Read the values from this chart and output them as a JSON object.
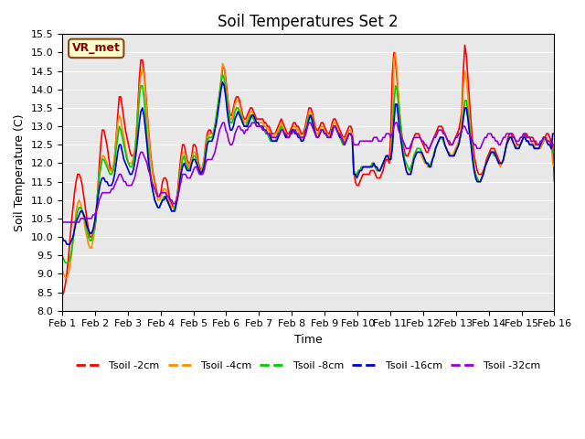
{
  "title": "Soil Temperatures Set 2",
  "xlabel": "Time",
  "ylabel": "Soil Temperature (C)",
  "ylim": [
    8.0,
    15.5
  ],
  "yticks": [
    8.0,
    8.5,
    9.0,
    9.5,
    10.0,
    10.5,
    11.0,
    11.5,
    12.0,
    12.5,
    13.0,
    13.5,
    14.0,
    14.5,
    15.0,
    15.5
  ],
  "bg_color": "#e8e8e8",
  "label_box": "VR_met",
  "x_labels": [
    "Feb 1",
    "Feb 2",
    "Feb 3",
    "Feb 4",
    "Feb 5",
    "Feb 6",
    "Feb 7",
    "Feb 8",
    "Feb 9",
    "Feb 10",
    "Feb 11",
    "Feb 12",
    "Feb 13",
    "Feb 14",
    "Feb 15",
    "Feb 16"
  ],
  "series_colors": [
    "#ff0000",
    "#ff8c00",
    "#00cc00",
    "#0000cc",
    "#9400d3"
  ],
  "series_labels": [
    "Tsoil -2cm",
    "Tsoil -4cm",
    "Tsoil -8cm",
    "Tsoil -16cm",
    "Tsoil -32cm"
  ],
  "tsoil_2cm": [
    8.4,
    8.5,
    8.7,
    9.0,
    9.4,
    9.9,
    10.4,
    10.8,
    11.2,
    11.5,
    11.7,
    11.7,
    11.6,
    11.4,
    11.1,
    10.8,
    10.5,
    10.2,
    10.0,
    10.0,
    10.1,
    10.2,
    10.5,
    11.2,
    11.9,
    12.5,
    12.9,
    12.9,
    12.7,
    12.5,
    12.2,
    11.9,
    11.8,
    11.8,
    12.1,
    12.7,
    13.3,
    13.8,
    13.8,
    13.5,
    13.2,
    12.9,
    12.7,
    12.5,
    12.3,
    12.2,
    12.2,
    12.3,
    12.7,
    13.5,
    14.3,
    14.8,
    14.8,
    14.5,
    14.0,
    13.4,
    12.9,
    12.4,
    12.0,
    11.7,
    11.5,
    11.3,
    11.1,
    11.1,
    11.2,
    11.5,
    11.6,
    11.6,
    11.5,
    11.2,
    11.0,
    10.9,
    10.8,
    10.8,
    11.0,
    11.3,
    11.8,
    12.2,
    12.5,
    12.5,
    12.3,
    12.1,
    12.0,
    12.0,
    12.2,
    12.5,
    12.5,
    12.4,
    12.1,
    11.9,
    11.8,
    11.9,
    12.1,
    12.5,
    12.8,
    12.9,
    12.9,
    12.8,
    12.8,
    13.0,
    13.2,
    13.5,
    13.8,
    14.2,
    14.6,
    14.6,
    14.3,
    13.9,
    13.5,
    13.3,
    13.3,
    13.5,
    13.7,
    13.8,
    13.8,
    13.7,
    13.5,
    13.3,
    13.2,
    13.2,
    13.3,
    13.4,
    13.5,
    13.5,
    13.4,
    13.3,
    13.2,
    13.2,
    13.2,
    13.2,
    13.2,
    13.1,
    13.1,
    13.0,
    13.0,
    12.9,
    12.8,
    12.8,
    12.8,
    12.9,
    13.0,
    13.1,
    13.2,
    13.1,
    13.0,
    12.9,
    12.8,
    12.8,
    12.9,
    13.0,
    13.1,
    13.1,
    13.0,
    13.0,
    12.9,
    12.8,
    12.8,
    12.9,
    13.1,
    13.3,
    13.5,
    13.5,
    13.4,
    13.2,
    13.0,
    12.9,
    12.9,
    13.0,
    13.1,
    13.1,
    13.0,
    12.9,
    12.8,
    12.8,
    12.9,
    13.1,
    13.2,
    13.2,
    13.1,
    13.0,
    12.9,
    12.8,
    12.7,
    12.7,
    12.8,
    12.9,
    13.0,
    13.0,
    12.9,
    11.8,
    11.5,
    11.4,
    11.4,
    11.5,
    11.6,
    11.7,
    11.7,
    11.7,
    11.7,
    11.7,
    11.8,
    11.8,
    11.8,
    11.7,
    11.6,
    11.6,
    11.6,
    11.7,
    11.8,
    12.0,
    12.1,
    12.1,
    12.0,
    12.8,
    14.4,
    15.0,
    14.8,
    14.3,
    13.7,
    13.2,
    12.8,
    12.5,
    12.3,
    12.2,
    12.2,
    12.3,
    12.4,
    12.6,
    12.7,
    12.8,
    12.8,
    12.8,
    12.7,
    12.6,
    12.5,
    12.4,
    12.3,
    12.3,
    12.4,
    12.5,
    12.6,
    12.7,
    12.8,
    12.9,
    13.0,
    13.0,
    13.0,
    12.9,
    12.8,
    12.7,
    12.6,
    12.5,
    12.5,
    12.5,
    12.6,
    12.7,
    12.8,
    12.9,
    13.1,
    13.4,
    14.5,
    15.2,
    14.9,
    14.3,
    13.7,
    13.1,
    12.6,
    12.2,
    12.0,
    11.8,
    11.7,
    11.7,
    11.7,
    11.8,
    11.9,
    12.1,
    12.2,
    12.3,
    12.4,
    12.4,
    12.4,
    12.3,
    12.2,
    12.1,
    12.0,
    12.0,
    12.1,
    12.3,
    12.5,
    12.7,
    12.8,
    12.8,
    12.8,
    12.7,
    12.6,
    12.5,
    12.5,
    12.5,
    12.6,
    12.7,
    12.8,
    12.8,
    12.7,
    12.7,
    12.7,
    12.7,
    12.6,
    12.6,
    12.5,
    12.5,
    12.5,
    12.5,
    12.6,
    12.7,
    12.8,
    12.8,
    12.7,
    12.6,
    12.5,
    11.5
  ],
  "tsoil_4cm": [
    9.1,
    9.0,
    8.9,
    8.9,
    9.0,
    9.2,
    9.5,
    9.9,
    10.3,
    10.7,
    10.9,
    11.0,
    10.9,
    10.7,
    10.5,
    10.2,
    10.0,
    9.8,
    9.7,
    9.7,
    9.9,
    10.2,
    10.7,
    11.2,
    11.7,
    12.0,
    12.2,
    12.2,
    12.1,
    12.0,
    11.9,
    11.8,
    11.8,
    11.9,
    12.2,
    12.7,
    13.1,
    13.3,
    13.2,
    12.9,
    12.7,
    12.4,
    12.2,
    12.0,
    12.0,
    12.0,
    12.1,
    12.3,
    12.8,
    13.4,
    14.0,
    14.4,
    14.6,
    14.4,
    13.9,
    13.3,
    12.8,
    12.3,
    11.9,
    11.6,
    11.4,
    11.2,
    11.0,
    11.0,
    11.1,
    11.2,
    11.3,
    11.3,
    11.2,
    11.0,
    10.9,
    10.8,
    10.8,
    10.8,
    11.0,
    11.2,
    11.6,
    12.0,
    12.3,
    12.3,
    12.2,
    12.0,
    11.9,
    12.0,
    12.1,
    12.3,
    12.3,
    12.2,
    12.0,
    11.8,
    11.8,
    11.9,
    12.1,
    12.4,
    12.7,
    12.8,
    12.8,
    12.8,
    12.8,
    13.0,
    13.3,
    13.6,
    13.9,
    14.3,
    14.7,
    14.6,
    14.2,
    13.8,
    13.4,
    13.2,
    13.2,
    13.4,
    13.6,
    13.7,
    13.7,
    13.6,
    13.4,
    13.2,
    13.1,
    13.1,
    13.2,
    13.3,
    13.4,
    13.4,
    13.3,
    13.2,
    13.1,
    13.1,
    13.1,
    13.1,
    13.1,
    13.0,
    13.0,
    12.9,
    12.9,
    12.8,
    12.7,
    12.7,
    12.8,
    12.8,
    12.9,
    13.0,
    13.1,
    13.0,
    12.9,
    12.8,
    12.7,
    12.7,
    12.8,
    12.9,
    13.0,
    13.0,
    12.9,
    12.9,
    12.8,
    12.7,
    12.7,
    12.8,
    13.0,
    13.2,
    13.4,
    13.4,
    13.3,
    13.1,
    12.9,
    12.8,
    12.8,
    12.9,
    13.0,
    13.0,
    12.9,
    12.8,
    12.8,
    12.7,
    12.8,
    13.0,
    13.1,
    13.1,
    13.0,
    12.9,
    12.8,
    12.7,
    12.7,
    12.6,
    12.7,
    12.8,
    12.9,
    12.9,
    12.8,
    11.8,
    11.7,
    11.7,
    11.8,
    11.8,
    11.9,
    11.9,
    11.9,
    11.9,
    11.9,
    11.9,
    11.9,
    12.0,
    12.0,
    11.9,
    11.8,
    11.8,
    11.8,
    11.9,
    12.0,
    12.1,
    12.2,
    12.2,
    12.1,
    12.2,
    13.2,
    14.8,
    15.0,
    14.5,
    13.8,
    13.2,
    12.7,
    12.3,
    12.0,
    11.8,
    11.7,
    11.7,
    11.8,
    12.0,
    12.2,
    12.3,
    12.3,
    12.3,
    12.3,
    12.2,
    12.1,
    12.0,
    12.0,
    11.9,
    11.9,
    12.0,
    12.1,
    12.3,
    12.4,
    12.5,
    12.6,
    12.7,
    12.7,
    12.6,
    12.5,
    12.4,
    12.3,
    12.3,
    12.2,
    12.2,
    12.3,
    12.4,
    12.5,
    12.6,
    12.8,
    13.2,
    14.0,
    14.5,
    14.3,
    13.8,
    13.2,
    12.7,
    12.2,
    11.9,
    11.7,
    11.5,
    11.5,
    11.5,
    11.6,
    11.7,
    11.9,
    12.0,
    12.1,
    12.2,
    12.3,
    12.3,
    12.3,
    12.2,
    12.1,
    12.0,
    11.9,
    12.0,
    12.1,
    12.3,
    12.5,
    12.6,
    12.7,
    12.7,
    12.6,
    12.5,
    12.5,
    12.4,
    12.4,
    12.5,
    12.6,
    12.7,
    12.7,
    12.6,
    12.6,
    12.6,
    12.6,
    12.5,
    12.5,
    12.4,
    12.4,
    12.4,
    12.4,
    12.5,
    12.6,
    12.7,
    12.7,
    12.6,
    12.6,
    12.5,
    12.0,
    11.9
  ],
  "tsoil_8cm": [
    9.5,
    9.4,
    9.3,
    9.3,
    9.3,
    9.4,
    9.6,
    9.9,
    10.2,
    10.5,
    10.7,
    10.8,
    10.8,
    10.7,
    10.6,
    10.4,
    10.2,
    10.0,
    9.9,
    9.9,
    10.1,
    10.3,
    10.7,
    11.2,
    11.6,
    11.9,
    12.1,
    12.1,
    12.0,
    11.9,
    11.8,
    11.7,
    11.7,
    11.8,
    12.0,
    12.4,
    12.7,
    13.0,
    12.9,
    12.7,
    12.5,
    12.3,
    12.1,
    12.0,
    11.9,
    11.9,
    12.0,
    12.2,
    12.6,
    13.2,
    13.8,
    14.1,
    14.1,
    13.8,
    13.3,
    12.7,
    12.3,
    11.8,
    11.5,
    11.2,
    11.0,
    10.9,
    10.8,
    10.8,
    10.9,
    11.0,
    11.1,
    11.1,
    11.0,
    10.9,
    10.8,
    10.7,
    10.7,
    10.8,
    10.9,
    11.1,
    11.5,
    11.8,
    12.1,
    12.2,
    12.0,
    11.9,
    11.8,
    11.9,
    12.0,
    12.2,
    12.2,
    12.1,
    11.9,
    11.8,
    11.7,
    11.8,
    12.0,
    12.3,
    12.6,
    12.7,
    12.7,
    12.7,
    12.8,
    13.0,
    13.3,
    13.6,
    13.9,
    14.2,
    14.4,
    14.3,
    14.0,
    13.6,
    13.3,
    13.1,
    13.1,
    13.2,
    13.4,
    13.5,
    13.5,
    13.4,
    13.3,
    13.1,
    13.0,
    13.0,
    13.1,
    13.2,
    13.3,
    13.3,
    13.2,
    13.1,
    13.0,
    13.0,
    13.0,
    13.0,
    12.9,
    12.9,
    12.8,
    12.8,
    12.7,
    12.6,
    12.6,
    12.6,
    12.6,
    12.7,
    12.8,
    12.9,
    13.0,
    12.9,
    12.8,
    12.7,
    12.7,
    12.7,
    12.8,
    12.9,
    12.9,
    12.9,
    12.8,
    12.8,
    12.7,
    12.6,
    12.6,
    12.7,
    12.9,
    13.1,
    13.3,
    13.3,
    13.1,
    12.9,
    12.8,
    12.7,
    12.7,
    12.8,
    12.9,
    12.9,
    12.8,
    12.8,
    12.7,
    12.7,
    12.7,
    12.9,
    13.0,
    13.0,
    12.9,
    12.8,
    12.7,
    12.6,
    12.5,
    12.5,
    12.6,
    12.7,
    12.8,
    12.8,
    12.7,
    11.8,
    11.7,
    11.7,
    11.8,
    11.8,
    11.9,
    11.9,
    11.9,
    11.9,
    11.9,
    11.9,
    11.9,
    12.0,
    12.0,
    11.9,
    11.8,
    11.8,
    11.8,
    11.9,
    12.0,
    12.1,
    12.2,
    12.2,
    12.1,
    12.1,
    12.6,
    13.6,
    14.1,
    14.0,
    13.6,
    13.2,
    12.8,
    12.4,
    12.1,
    12.0,
    11.9,
    11.8,
    11.9,
    12.0,
    12.2,
    12.3,
    12.4,
    12.4,
    12.4,
    12.3,
    12.2,
    12.1,
    12.0,
    12.0,
    11.9,
    12.0,
    12.1,
    12.2,
    12.4,
    12.5,
    12.6,
    12.7,
    12.7,
    12.6,
    12.5,
    12.4,
    12.3,
    12.2,
    12.2,
    12.2,
    12.2,
    12.3,
    12.4,
    12.5,
    12.7,
    12.9,
    13.3,
    13.7,
    13.7,
    13.4,
    13.0,
    12.6,
    12.2,
    11.9,
    11.7,
    11.6,
    11.5,
    11.5,
    11.6,
    11.7,
    11.9,
    12.0,
    12.1,
    12.2,
    12.3,
    12.3,
    12.2,
    12.2,
    12.1,
    12.0,
    12.0,
    12.0,
    12.1,
    12.3,
    12.5,
    12.6,
    12.7,
    12.7,
    12.6,
    12.5,
    12.4,
    12.4,
    12.4,
    12.5,
    12.6,
    12.7,
    12.7,
    12.6,
    12.6,
    12.5,
    12.5,
    12.5,
    12.4,
    12.4,
    12.4,
    12.4,
    12.5,
    12.6,
    12.7,
    12.7,
    12.6,
    12.5,
    12.5,
    12.4,
    12.3,
    12.3
  ],
  "tsoil_16cm": [
    10.0,
    9.9,
    9.9,
    9.8,
    9.8,
    9.8,
    9.9,
    10.0,
    10.2,
    10.4,
    10.5,
    10.6,
    10.7,
    10.7,
    10.6,
    10.5,
    10.3,
    10.2,
    10.1,
    10.1,
    10.2,
    10.4,
    10.7,
    11.0,
    11.3,
    11.5,
    11.6,
    11.6,
    11.5,
    11.5,
    11.4,
    11.4,
    11.4,
    11.5,
    11.7,
    12.0,
    12.3,
    12.5,
    12.5,
    12.3,
    12.1,
    12.0,
    11.9,
    11.8,
    11.7,
    11.7,
    11.8,
    12.0,
    12.3,
    12.7,
    13.1,
    13.4,
    13.5,
    13.3,
    12.9,
    12.5,
    12.0,
    11.7,
    11.4,
    11.2,
    11.0,
    10.9,
    10.8,
    10.8,
    10.9,
    11.0,
    11.0,
    11.1,
    11.0,
    10.9,
    10.8,
    10.7,
    10.7,
    10.7,
    10.9,
    11.1,
    11.4,
    11.7,
    11.9,
    12.0,
    11.9,
    11.8,
    11.8,
    11.8,
    12.0,
    12.1,
    12.1,
    12.0,
    11.9,
    11.8,
    11.7,
    11.8,
    11.9,
    12.2,
    12.5,
    12.6,
    12.6,
    12.6,
    12.7,
    12.9,
    13.1,
    13.4,
    13.7,
    14.0,
    14.2,
    14.1,
    13.8,
    13.4,
    13.1,
    12.9,
    12.9,
    13.0,
    13.2,
    13.3,
    13.4,
    13.3,
    13.2,
    13.1,
    13.0,
    13.0,
    13.0,
    13.1,
    13.2,
    13.3,
    13.3,
    13.2,
    13.1,
    13.1,
    13.0,
    13.0,
    13.0,
    12.9,
    12.9,
    12.8,
    12.8,
    12.7,
    12.6,
    12.6,
    12.6,
    12.6,
    12.7,
    12.8,
    12.9,
    12.9,
    12.8,
    12.7,
    12.7,
    12.7,
    12.8,
    12.9,
    12.9,
    12.8,
    12.8,
    12.7,
    12.7,
    12.6,
    12.6,
    12.7,
    12.9,
    13.0,
    13.2,
    13.3,
    13.2,
    13.0,
    12.8,
    12.7,
    12.7,
    12.8,
    12.9,
    12.9,
    12.8,
    12.8,
    12.7,
    12.7,
    12.7,
    12.9,
    13.0,
    13.0,
    12.9,
    12.8,
    12.7,
    12.7,
    12.6,
    12.5,
    12.6,
    12.7,
    12.8,
    12.8,
    12.7,
    11.7,
    11.7,
    11.6,
    11.7,
    11.8,
    11.8,
    11.9,
    11.9,
    11.9,
    11.9,
    11.9,
    11.9,
    11.9,
    12.0,
    11.9,
    11.9,
    11.8,
    11.8,
    11.9,
    12.0,
    12.1,
    12.2,
    12.2,
    12.1,
    12.1,
    12.4,
    13.1,
    13.6,
    13.6,
    13.2,
    12.8,
    12.5,
    12.2,
    12.0,
    11.8,
    11.7,
    11.7,
    11.7,
    11.9,
    12.1,
    12.2,
    12.3,
    12.3,
    12.3,
    12.3,
    12.2,
    12.1,
    12.0,
    12.0,
    11.9,
    11.9,
    12.1,
    12.2,
    12.4,
    12.5,
    12.6,
    12.7,
    12.7,
    12.7,
    12.5,
    12.4,
    12.3,
    12.2,
    12.2,
    12.2,
    12.2,
    12.3,
    12.4,
    12.5,
    12.7,
    12.9,
    13.2,
    13.5,
    13.5,
    13.2,
    12.8,
    12.5,
    12.1,
    11.8,
    11.6,
    11.5,
    11.5,
    11.5,
    11.6,
    11.7,
    11.9,
    12.0,
    12.1,
    12.2,
    12.3,
    12.3,
    12.3,
    12.2,
    12.1,
    12.0,
    12.0,
    12.0,
    12.1,
    12.3,
    12.5,
    12.6,
    12.7,
    12.7,
    12.6,
    12.5,
    12.4,
    12.4,
    12.4,
    12.5,
    12.6,
    12.7,
    12.7,
    12.6,
    12.6,
    12.5,
    12.5,
    12.5,
    12.4,
    12.4,
    12.4,
    12.4,
    12.5,
    12.6,
    12.7,
    12.7,
    12.6,
    12.5,
    12.5,
    12.4,
    12.8,
    12.8
  ],
  "tsoil_32cm": [
    10.4,
    10.4,
    10.4,
    10.4,
    10.4,
    10.4,
    10.4,
    10.4,
    10.4,
    10.4,
    10.4,
    10.4,
    10.5,
    10.5,
    10.5,
    10.5,
    10.5,
    10.5,
    10.5,
    10.5,
    10.6,
    10.6,
    10.7,
    10.8,
    11.0,
    11.1,
    11.2,
    11.2,
    11.2,
    11.2,
    11.2,
    11.2,
    11.3,
    11.3,
    11.4,
    11.5,
    11.6,
    11.7,
    11.7,
    11.6,
    11.5,
    11.5,
    11.4,
    11.4,
    11.4,
    11.4,
    11.5,
    11.6,
    11.8,
    12.0,
    12.2,
    12.3,
    12.3,
    12.2,
    12.1,
    12.0,
    11.8,
    11.7,
    11.5,
    11.4,
    11.3,
    11.2,
    11.1,
    11.1,
    11.2,
    11.2,
    11.2,
    11.2,
    11.1,
    11.1,
    11.0,
    11.0,
    10.9,
    10.9,
    11.0,
    11.1,
    11.3,
    11.5,
    11.7,
    11.7,
    11.7,
    11.6,
    11.6,
    11.6,
    11.7,
    11.8,
    11.9,
    11.9,
    11.8,
    11.7,
    11.7,
    11.7,
    11.8,
    12.0,
    12.1,
    12.1,
    12.1,
    12.1,
    12.2,
    12.3,
    12.5,
    12.7,
    12.9,
    13.0,
    13.1,
    13.1,
    12.9,
    12.8,
    12.6,
    12.5,
    12.5,
    12.6,
    12.8,
    12.9,
    13.0,
    13.0,
    12.9,
    12.9,
    12.8,
    12.9,
    12.9,
    13.0,
    13.0,
    13.1,
    13.1,
    13.1,
    13.0,
    13.0,
    13.0,
    13.0,
    12.9,
    12.9,
    12.9,
    12.8,
    12.8,
    12.8,
    12.7,
    12.7,
    12.7,
    12.7,
    12.8,
    12.8,
    12.9,
    12.9,
    12.8,
    12.8,
    12.7,
    12.7,
    12.8,
    12.8,
    12.9,
    12.9,
    12.8,
    12.8,
    12.7,
    12.7,
    12.7,
    12.7,
    12.8,
    13.0,
    13.1,
    13.1,
    13.0,
    12.9,
    12.8,
    12.7,
    12.7,
    12.8,
    12.9,
    12.9,
    12.8,
    12.8,
    12.7,
    12.7,
    12.7,
    12.8,
    13.0,
    13.0,
    12.9,
    12.8,
    12.8,
    12.7,
    12.6,
    12.5,
    12.6,
    12.7,
    12.8,
    12.8,
    12.7,
    12.5,
    12.5,
    12.5,
    12.5,
    12.6,
    12.6,
    12.6,
    12.6,
    12.6,
    12.6,
    12.6,
    12.6,
    12.6,
    12.7,
    12.7,
    12.7,
    12.6,
    12.6,
    12.6,
    12.7,
    12.7,
    12.8,
    12.8,
    12.8,
    12.7,
    12.8,
    13.0,
    13.1,
    13.1,
    12.9,
    12.8,
    12.7,
    12.6,
    12.5,
    12.4,
    12.4,
    12.4,
    12.5,
    12.6,
    12.7,
    12.7,
    12.7,
    12.7,
    12.7,
    12.6,
    12.6,
    12.5,
    12.5,
    12.4,
    12.4,
    12.5,
    12.6,
    12.7,
    12.7,
    12.8,
    12.9,
    12.9,
    12.9,
    12.8,
    12.8,
    12.7,
    12.6,
    12.6,
    12.5,
    12.5,
    12.6,
    12.7,
    12.7,
    12.8,
    12.8,
    12.9,
    13.0,
    13.0,
    12.9,
    12.8,
    12.8,
    12.7,
    12.6,
    12.5,
    12.5,
    12.4,
    12.4,
    12.4,
    12.5,
    12.6,
    12.7,
    12.7,
    12.8,
    12.8,
    12.8,
    12.7,
    12.7,
    12.6,
    12.6,
    12.5,
    12.5,
    12.6,
    12.7,
    12.7,
    12.8,
    12.8,
    12.8,
    12.8,
    12.7,
    12.7,
    12.6,
    12.6,
    12.6,
    12.7,
    12.7,
    12.8,
    12.8,
    12.7,
    12.7,
    12.7,
    12.6,
    12.6,
    12.6,
    12.5,
    12.5,
    12.5,
    12.6,
    12.6,
    12.7,
    12.7,
    12.6,
    12.6,
    12.6,
    12.5,
    12.5,
    12.5
  ]
}
